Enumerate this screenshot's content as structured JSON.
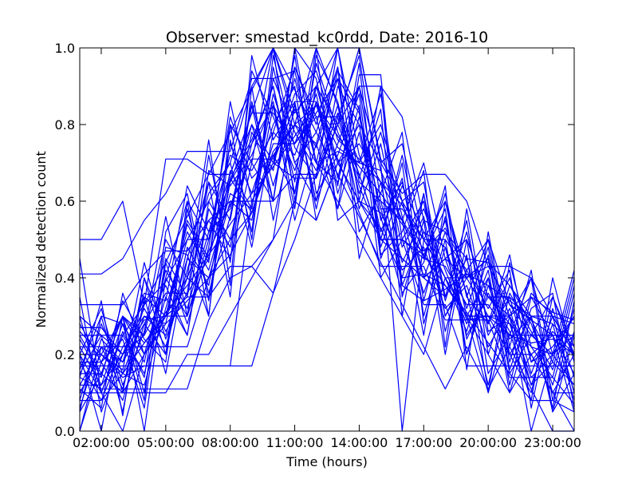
{
  "chart_data": {
    "type": "line",
    "title": "Observer: smestad_kc0rdd, Date: 2016-10",
    "xlabel": "Time (hours)",
    "ylabel": "Normalized detection count",
    "xlim": [
      1,
      24
    ],
    "ylim": [
      0,
      1
    ],
    "x_ticks": [
      {
        "value": 2,
        "label": "02:00:00"
      },
      {
        "value": 5,
        "label": "05:00:00"
      },
      {
        "value": 8,
        "label": "08:00:00"
      },
      {
        "value": 11,
        "label": "11:00:00"
      },
      {
        "value": 14,
        "label": "14:00:00"
      },
      {
        "value": 17,
        "label": "17:00:00"
      },
      {
        "value": 20,
        "label": "20:00:00"
      },
      {
        "value": 23,
        "label": "23:00:00"
      }
    ],
    "y_ticks": [
      {
        "value": 0.0,
        "label": "0.0"
      },
      {
        "value": 0.2,
        "label": "0.2"
      },
      {
        "value": 0.4,
        "label": "0.4"
      },
      {
        "value": 0.6,
        "label": "0.6"
      },
      {
        "value": 0.8,
        "label": "0.8"
      },
      {
        "value": 1.0,
        "label": "1.0"
      }
    ],
    "grid": false,
    "line_color": "#0000ff",
    "x": [
      1,
      2,
      3,
      4,
      5,
      6,
      7,
      8,
      9,
      10,
      11,
      12,
      13,
      14,
      15,
      16,
      17,
      18,
      19,
      20,
      21,
      22,
      23,
      24
    ],
    "series": [
      {
        "values": [
          0.5,
          0.5,
          0.6,
          0.33,
          0.71,
          0.71,
          0.67,
          0.67,
          0.83,
          1.0,
          0.83,
          0.9,
          1.0,
          1.0,
          0.71,
          0.62,
          0.67,
          0.67,
          0.6,
          0.43,
          0.33,
          0.25,
          0.2,
          0.3
        ]
      },
      {
        "values": [
          0.41,
          0.41,
          0.45,
          0.55,
          0.62,
          0.73,
          0.73,
          0.73,
          0.92,
          0.92,
          0.94,
          0.7,
          0.73,
          0.7,
          0.68,
          0.55,
          0.46,
          0.38,
          0.3,
          0.3,
          0.3,
          0.35,
          0.31,
          0.29
        ]
      },
      {
        "values": [
          0.33,
          0.33,
          0.33,
          0.41,
          0.47,
          0.47,
          0.55,
          0.6,
          0.6,
          0.7,
          0.66,
          0.66,
          0.8,
          0.9,
          0.9,
          0.82,
          0.55,
          0.52,
          0.45,
          0.44,
          0.38,
          0.3,
          0.3,
          0.2
        ]
      },
      {
        "values": [
          0.27,
          0.27,
          0.2,
          0.25,
          0.36,
          0.36,
          0.45,
          0.66,
          0.57,
          0.75,
          0.75,
          0.82,
          0.82,
          0.64,
          0.5,
          0.45,
          0.4,
          0.45,
          0.29,
          0.3,
          0.25,
          0.23,
          0.24,
          0.2
        ]
      },
      {
        "values": [
          0.25,
          0.25,
          0.25,
          0.33,
          0.39,
          0.5,
          0.5,
          0.67,
          0.83,
          0.83,
          0.75,
          0.83,
          0.92,
          0.83,
          0.58,
          0.58,
          0.5,
          0.5,
          0.42,
          0.5,
          0.33,
          0.29,
          0.25,
          0.25
        ]
      },
      {
        "values": [
          0.22,
          0.22,
          0.22,
          0.22,
          0.22,
          0.22,
          0.4,
          0.46,
          0.57,
          0.73,
          0.8,
          0.75,
          0.58,
          0.93,
          0.93,
          0.38,
          0.34,
          0.37,
          0.41,
          0.38,
          0.34,
          0.3,
          0.28,
          0.22
        ]
      },
      {
        "values": [
          0.2,
          0.2,
          0.14,
          0.17,
          0.17,
          0.17,
          0.17,
          0.17,
          0.6,
          0.6,
          0.67,
          0.67,
          0.8,
          0.67,
          0.5,
          0.5,
          0.45,
          0.43,
          0.33,
          0.33,
          0.25,
          0.25,
          0.25,
          0.25
        ]
      },
      {
        "values": [
          0.18,
          0.18,
          0.3,
          0.23,
          0.3,
          0.35,
          0.35,
          0.43,
          0.43,
          0.36,
          0.6,
          0.55,
          0.7,
          0.6,
          0.57,
          0.45,
          0.4,
          0.45,
          0.4,
          0.43,
          0.43,
          0.4,
          0.3,
          0.28
        ]
      },
      {
        "values": [
          0.17,
          0.17,
          0.17,
          0.17,
          0.17,
          0.17,
          0.17,
          0.17,
          0.17,
          0.36,
          0.5,
          0.67,
          0.83,
          0.67,
          0.5,
          0.5,
          0.33,
          0.33,
          0.17,
          0.17,
          0.17,
          0.17,
          0.17,
          0.17
        ]
      },
      {
        "values": [
          0.15,
          0.15,
          0.3,
          0.2,
          0.28,
          0.34,
          0.4,
          0.5,
          0.57,
          0.72,
          0.8,
          0.85,
          0.7,
          0.6,
          0.53,
          0.4,
          0.41,
          0.38,
          0.3,
          0.3,
          0.28,
          0.22,
          0.2,
          0.12
        ]
      },
      {
        "values": [
          0.14,
          0.11,
          0.11,
          0.11,
          0.11,
          0.11,
          0.29,
          0.4,
          0.43,
          0.5,
          0.86,
          0.86,
          0.71,
          0.57,
          0.43,
          0.43,
          0.43,
          0.29,
          0.29,
          0.29,
          0.14,
          0.14,
          0.14,
          0.07
        ]
      },
      {
        "values": [
          0.12,
          0.12,
          0.2,
          0.29,
          0.3,
          0.3,
          0.47,
          0.59,
          0.71,
          0.71,
          0.88,
          0.94,
          0.76,
          0.71,
          0.65,
          0.59,
          0.47,
          0.53,
          0.41,
          0.35,
          0.35,
          0.29,
          0.18,
          0.12
        ]
      },
      {
        "values": [
          0.1,
          0.1,
          0.1,
          0.1,
          0.1,
          0.2,
          0.2,
          0.3,
          0.4,
          0.5,
          0.6,
          0.9,
          0.7,
          0.8,
          0.7,
          0.6,
          0.5,
          0.4,
          0.4,
          0.3,
          0.2,
          0.2,
          0.1,
          0.1
        ]
      },
      {
        "values": [
          0.08,
          0.08,
          0.15,
          0.23,
          0.31,
          0.38,
          0.46,
          0.54,
          0.62,
          0.69,
          0.77,
          0.85,
          0.77,
          0.69,
          0.62,
          0.54,
          0.46,
          0.38,
          0.31,
          0.23,
          0.15,
          0.08,
          0.08,
          0.05
        ]
      },
      {
        "values": [
          0.0,
          0.22,
          0.11,
          0.33,
          0.44,
          0.56,
          0.67,
          0.78,
          0.89,
          1.0,
          0.89,
          0.78,
          0.67,
          0.56,
          0.44,
          0.33,
          0.22,
          0.11,
          0.22,
          0.11,
          0.22,
          0.11,
          0.0,
          0.0
        ]
      },
      {
        "values": [
          0.45,
          0.1,
          0.0,
          0.2,
          0.3,
          0.5,
          0.6,
          0.7,
          0.9,
          1.0,
          0.8,
          0.7,
          0.6,
          0.5,
          0.4,
          0.3,
          0.2,
          0.4,
          0.3,
          0.2,
          0.1,
          0.2,
          0.1,
          0.0
        ]
      },
      {
        "values": [
          0.2,
          0.0,
          0.3,
          0.0,
          0.4,
          0.6,
          0.5,
          0.8,
          0.7,
          1.0,
          0.6,
          0.9,
          0.8,
          1.0,
          0.7,
          0.0,
          0.5,
          0.4,
          0.3,
          0.1,
          0.3,
          0.0,
          0.2,
          0.3
        ]
      },
      {
        "values": [
          0.1,
          0.2,
          0.15,
          0.3,
          0.25,
          0.45,
          0.4,
          0.6,
          0.55,
          0.85,
          0.75,
          0.9,
          0.8,
          1.0,
          0.7,
          0.75,
          0.5,
          0.6,
          0.4,
          0.45,
          0.3,
          0.2,
          0.25,
          0.15
        ]
      },
      {
        "values": [
          0.3,
          0.25,
          0.2,
          0.35,
          0.3,
          0.4,
          0.55,
          0.45,
          0.7,
          0.6,
          0.95,
          0.8,
          1.0,
          0.65,
          0.6,
          0.55,
          0.7,
          0.45,
          0.5,
          0.35,
          0.3,
          0.4,
          0.2,
          0.25
        ]
      },
      {
        "values": [
          0.05,
          0.15,
          0.1,
          0.2,
          0.4,
          0.3,
          0.5,
          0.65,
          0.8,
          0.7,
          0.85,
          0.6,
          0.75,
          0.9,
          0.55,
          0.65,
          0.4,
          0.55,
          0.3,
          0.4,
          0.2,
          0.3,
          0.1,
          0.2
        ]
      },
      {
        "values": [
          0.2,
          0.1,
          0.25,
          0.15,
          0.35,
          0.25,
          0.6,
          0.5,
          0.75,
          0.9,
          0.65,
          1.0,
          0.85,
          0.7,
          0.8,
          0.6,
          0.65,
          0.35,
          0.45,
          0.25,
          0.35,
          0.15,
          0.3,
          0.1
        ]
      },
      {
        "values": [
          0.12,
          0.22,
          0.18,
          0.28,
          0.2,
          0.48,
          0.38,
          0.68,
          0.58,
          0.88,
          0.7,
          0.78,
          0.95,
          0.6,
          0.5,
          0.72,
          0.45,
          0.62,
          0.35,
          0.28,
          0.4,
          0.18,
          0.22,
          0.3
        ]
      },
      {
        "values": [
          0.25,
          0.15,
          0.3,
          0.1,
          0.45,
          0.35,
          0.65,
          0.55,
          0.85,
          0.6,
          1.0,
          0.7,
          0.65,
          0.85,
          0.4,
          0.5,
          0.6,
          0.3,
          0.4,
          0.45,
          0.15,
          0.25,
          0.35,
          0.2
        ]
      },
      {
        "values": [
          0.18,
          0.08,
          0.22,
          0.3,
          0.28,
          0.55,
          0.45,
          0.75,
          0.62,
          0.8,
          0.9,
          0.55,
          0.7,
          0.75,
          0.65,
          0.38,
          0.52,
          0.48,
          0.25,
          0.35,
          0.28,
          0.12,
          0.18,
          0.4
        ]
      },
      {
        "values": [
          0.05,
          0.3,
          0.1,
          0.4,
          0.2,
          0.6,
          0.3,
          0.8,
          0.5,
          0.95,
          0.7,
          0.6,
          0.9,
          0.8,
          0.5,
          0.7,
          0.3,
          0.5,
          0.2,
          0.4,
          0.1,
          0.3,
          0.05,
          0.25
        ]
      },
      {
        "values": [
          0.22,
          0.12,
          0.28,
          0.18,
          0.42,
          0.32,
          0.52,
          0.72,
          0.68,
          0.78,
          0.72,
          0.88,
          0.62,
          0.82,
          0.58,
          0.42,
          0.48,
          0.32,
          0.38,
          0.22,
          0.32,
          0.12,
          0.28,
          0.08
        ]
      },
      {
        "values": [
          0.15,
          0.25,
          0.05,
          0.35,
          0.15,
          0.45,
          0.65,
          0.35,
          0.9,
          0.55,
          0.8,
          1.0,
          0.55,
          0.6,
          0.9,
          0.35,
          0.55,
          0.2,
          0.5,
          0.15,
          0.25,
          0.4,
          0.05,
          0.15
        ]
      },
      {
        "values": [
          0.1,
          0.2,
          0.3,
          0.25,
          0.5,
          0.4,
          0.35,
          0.65,
          0.75,
          0.85,
          0.55,
          0.75,
          0.95,
          0.45,
          0.65,
          0.55,
          0.25,
          0.6,
          0.35,
          0.5,
          0.2,
          0.1,
          0.35,
          0.22
        ]
      },
      {
        "values": [
          0.28,
          0.18,
          0.08,
          0.28,
          0.38,
          0.25,
          0.58,
          0.48,
          0.78,
          0.68,
          0.98,
          0.62,
          0.72,
          0.88,
          0.45,
          0.6,
          0.4,
          0.35,
          0.55,
          0.2,
          0.38,
          0.28,
          0.12,
          0.32
        ]
      },
      {
        "values": [
          0.08,
          0.28,
          0.15,
          0.12,
          0.32,
          0.52,
          0.42,
          0.62,
          0.58,
          0.92,
          0.78,
          0.68,
          0.85,
          0.58,
          0.75,
          0.48,
          0.58,
          0.42,
          0.28,
          0.42,
          0.12,
          0.35,
          0.25,
          0.05
        ]
      },
      {
        "values": [
          0.35,
          0.05,
          0.2,
          0.32,
          0.22,
          0.42,
          0.62,
          0.7,
          0.48,
          0.78,
          0.95,
          0.82,
          0.58,
          0.78,
          0.52,
          0.66,
          0.34,
          0.56,
          0.24,
          0.36,
          0.26,
          0.08,
          0.4,
          0.18
        ]
      },
      {
        "values": [
          0.0,
          0.18,
          0.24,
          0.06,
          0.44,
          0.28,
          0.48,
          0.82,
          0.66,
          0.72,
          0.62,
          0.96,
          0.78,
          0.66,
          0.84,
          0.3,
          0.62,
          0.26,
          0.46,
          0.1,
          0.44,
          0.22,
          0.14,
          0.36
        ]
      },
      {
        "values": [
          0.24,
          0.14,
          0.34,
          0.24,
          0.18,
          0.58,
          0.36,
          0.56,
          0.86,
          0.64,
          0.84,
          0.74,
          0.92,
          0.52,
          0.62,
          0.78,
          0.28,
          0.48,
          0.32,
          0.48,
          0.18,
          0.36,
          0.3,
          0.1
        ]
      },
      {
        "values": [
          0.14,
          0.34,
          0.04,
          0.4,
          0.26,
          0.36,
          0.72,
          0.44,
          0.94,
          0.82,
          0.68,
          0.86,
          0.64,
          0.96,
          0.46,
          0.52,
          0.68,
          0.22,
          0.58,
          0.26,
          0.3,
          0.14,
          0.2,
          0.42
        ]
      },
      {
        "values": [
          0.3,
          0.1,
          0.26,
          0.14,
          0.48,
          0.46,
          0.3,
          0.76,
          0.52,
          0.98,
          0.74,
          0.66,
          1.0,
          0.72,
          0.56,
          0.36,
          0.44,
          0.64,
          0.16,
          0.52,
          0.22,
          0.42,
          0.08,
          0.26
        ]
      },
      {
        "values": [
          0.06,
          0.24,
          0.18,
          0.36,
          0.34,
          0.64,
          0.52,
          0.58,
          0.8,
          0.6,
          1.0,
          0.92,
          0.66,
          0.9,
          0.68,
          0.44,
          0.56,
          0.3,
          0.42,
          0.32,
          0.42,
          0.06,
          0.32,
          0.14
        ]
      },
      {
        "values": [
          0.2,
          0.32,
          0.12,
          0.26,
          0.56,
          0.3,
          0.68,
          0.64,
          0.72,
          0.86,
          0.58,
          0.98,
          0.86,
          0.62,
          0.78,
          0.56,
          0.36,
          0.52,
          0.36,
          0.12,
          0.36,
          0.26,
          0.16,
          0.38
        ]
      },
      {
        "values": [
          0.11,
          0.06,
          0.36,
          0.2,
          0.3,
          0.54,
          0.44,
          0.86,
          0.6,
          0.7,
          0.92,
          0.7,
          0.94,
          0.84,
          0.48,
          0.64,
          0.52,
          0.4,
          0.26,
          0.46,
          0.16,
          0.32,
          0.36,
          0.06
        ]
      },
      {
        "values": [
          0.26,
          0.2,
          0.16,
          0.44,
          0.24,
          0.4,
          0.76,
          0.38,
          0.98,
          0.76,
          0.86,
          0.58,
          0.82,
          0.98,
          0.6,
          0.4,
          0.62,
          0.34,
          0.52,
          0.28,
          0.46,
          0.18,
          0.26,
          0.2
        ]
      },
      {
        "values": [
          0.16,
          0.3,
          0.28,
          0.08,
          0.52,
          0.62,
          0.34,
          0.66,
          0.76,
          0.9,
          0.62,
          0.86,
          0.74,
          0.7,
          0.88,
          0.5,
          0.46,
          0.58,
          0.2,
          0.38,
          0.24,
          0.3,
          0.06,
          0.34
        ]
      }
    ]
  }
}
